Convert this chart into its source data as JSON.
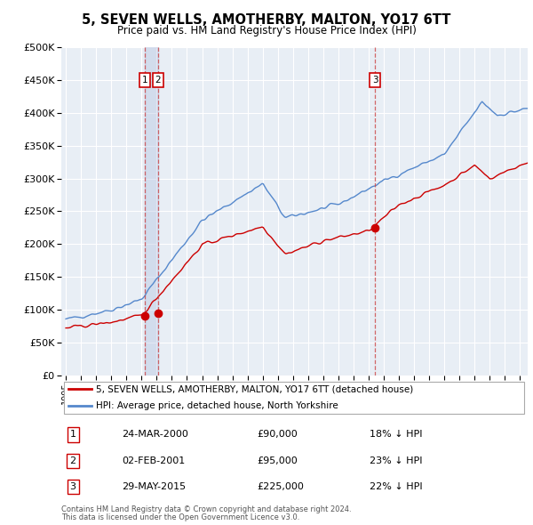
{
  "title": "5, SEVEN WELLS, AMOTHERBY, MALTON, YO17 6TT",
  "subtitle": "Price paid vs. HM Land Registry's House Price Index (HPI)",
  "ylim": [
    0,
    500000
  ],
  "yticks": [
    0,
    50000,
    100000,
    150000,
    200000,
    250000,
    300000,
    350000,
    400000,
    450000,
    500000
  ],
  "ytick_labels": [
    "£0",
    "£50K",
    "£100K",
    "£150K",
    "£200K",
    "£250K",
    "£300K",
    "£350K",
    "£400K",
    "£450K",
    "£500K"
  ],
  "plot_bg_color": "#e8eef5",
  "grid_color": "#ffffff",
  "sale_color": "#cc0000",
  "hpi_color": "#5588cc",
  "sale_label": "5, SEVEN WELLS, AMOTHERBY, MALTON, YO17 6TT (detached house)",
  "hpi_label": "HPI: Average price, detached house, North Yorkshire",
  "transactions": [
    {
      "num": 1,
      "date": "24-MAR-2000",
      "price": 90000,
      "pct": "18% ↓ HPI",
      "x_year": 2000.23
    },
    {
      "num": 2,
      "date": "02-FEB-2001",
      "price": 95000,
      "pct": "23% ↓ HPI",
      "x_year": 2001.09
    },
    {
      "num": 3,
      "date": "29-MAY-2015",
      "price": 225000,
      "pct": "22% ↓ HPI",
      "x_year": 2015.41
    }
  ],
  "footnote1": "Contains HM Land Registry data © Crown copyright and database right 2024.",
  "footnote2": "This data is licensed under the Open Government Licence v3.0.",
  "x_min": 1994.7,
  "x_max": 2025.5
}
